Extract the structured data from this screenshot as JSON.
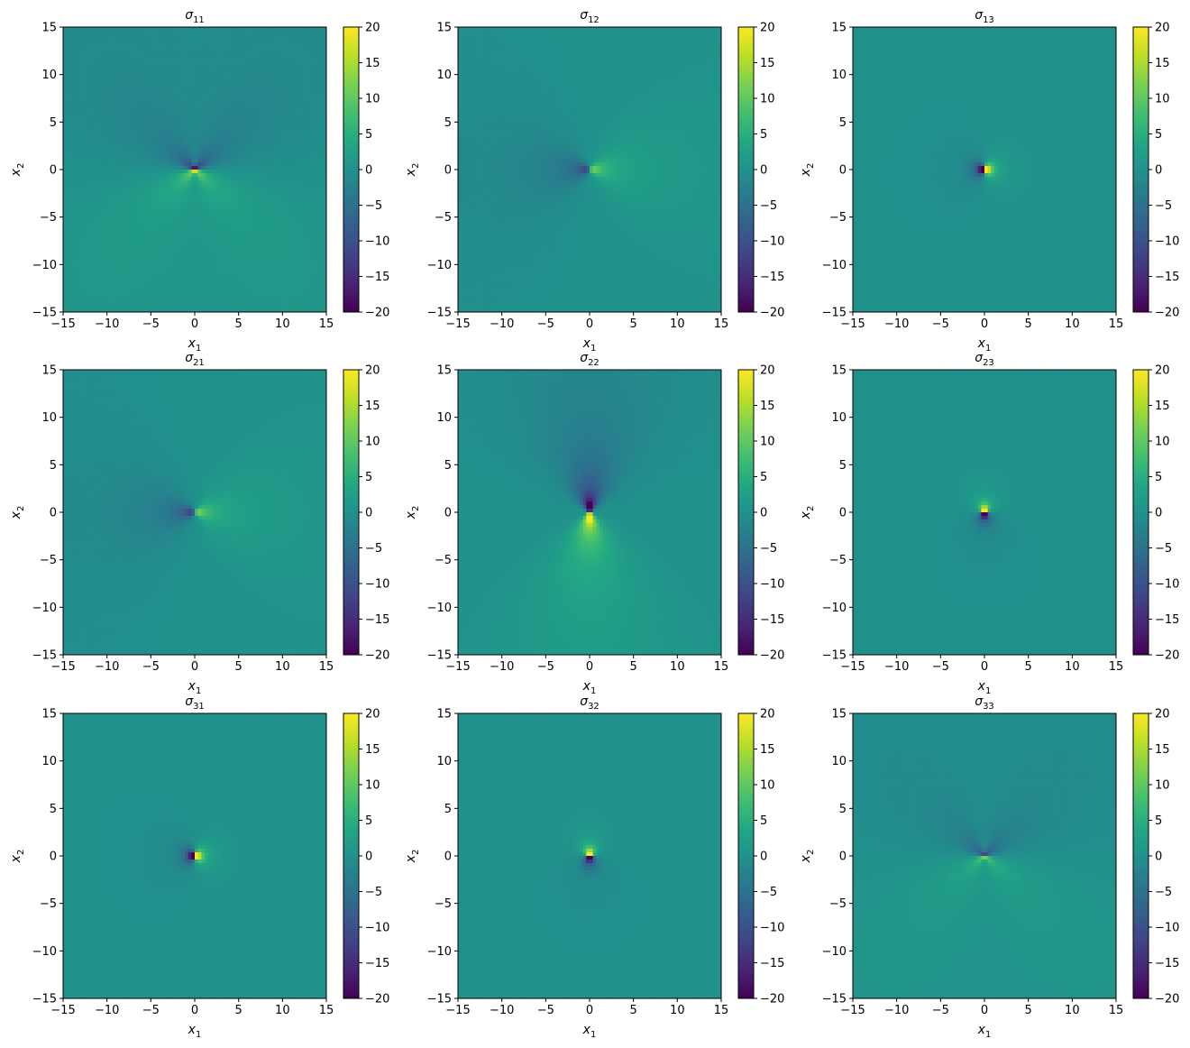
{
  "chart_data": [
    {
      "type": "heatmap",
      "title": "σ11",
      "title_sym": "σ",
      "title_sub": "11",
      "field": "s11",
      "xlabel_sym": "x",
      "xlabel_sub": "1",
      "ylabel_sym": "x",
      "ylabel_sub": "2",
      "xlim": [
        -15,
        15
      ],
      "ylim": [
        -15,
        15
      ],
      "clim": [
        -20,
        20
      ],
      "colormap": "viridis",
      "xticks": [
        -15,
        -10,
        -5,
        0,
        5,
        10,
        15
      ],
      "yticks": [
        -15,
        -10,
        -5,
        0,
        5,
        10,
        15
      ],
      "cticks": [
        -20,
        -15,
        -10,
        -5,
        0,
        5,
        10,
        15,
        20
      ]
    },
    {
      "type": "heatmap",
      "title": "σ12",
      "title_sym": "σ",
      "title_sub": "12",
      "field": "s12",
      "xlabel_sym": "x",
      "xlabel_sub": "1",
      "ylabel_sym": "x",
      "ylabel_sub": "2",
      "xlim": [
        -15,
        15
      ],
      "ylim": [
        -15,
        15
      ],
      "clim": [
        -20,
        20
      ],
      "colormap": "viridis",
      "xticks": [
        -15,
        -10,
        -5,
        0,
        5,
        10,
        15
      ],
      "yticks": [
        -15,
        -10,
        -5,
        0,
        5,
        10,
        15
      ],
      "cticks": [
        -20,
        -15,
        -10,
        -5,
        0,
        5,
        10,
        15,
        20
      ]
    },
    {
      "type": "heatmap",
      "title": "σ13",
      "title_sym": "σ",
      "title_sub": "13",
      "field": "s13",
      "xlabel_sym": "x",
      "xlabel_sub": "1",
      "ylabel_sym": "x",
      "ylabel_sub": "2",
      "xlim": [
        -15,
        15
      ],
      "ylim": [
        -15,
        15
      ],
      "clim": [
        -20,
        20
      ],
      "colormap": "viridis",
      "xticks": [
        -15,
        -10,
        -5,
        0,
        5,
        10,
        15
      ],
      "yticks": [
        -15,
        -10,
        -5,
        0,
        5,
        10,
        15
      ],
      "cticks": [
        -20,
        -15,
        -10,
        -5,
        0,
        5,
        10,
        15,
        20
      ]
    },
    {
      "type": "heatmap",
      "title": "σ21",
      "title_sym": "σ",
      "title_sub": "21",
      "field": "s21",
      "xlabel_sym": "x",
      "xlabel_sub": "1",
      "ylabel_sym": "x",
      "ylabel_sub": "2",
      "xlim": [
        -15,
        15
      ],
      "ylim": [
        -15,
        15
      ],
      "clim": [
        -20,
        20
      ],
      "colormap": "viridis",
      "xticks": [
        -15,
        -10,
        -5,
        0,
        5,
        10,
        15
      ],
      "yticks": [
        -15,
        -10,
        -5,
        0,
        5,
        10,
        15
      ],
      "cticks": [
        -20,
        -15,
        -10,
        -5,
        0,
        5,
        10,
        15,
        20
      ]
    },
    {
      "type": "heatmap",
      "title": "σ22",
      "title_sym": "σ",
      "title_sub": "22",
      "field": "s22",
      "xlabel_sym": "x",
      "xlabel_sub": "1",
      "ylabel_sym": "x",
      "ylabel_sub": "2",
      "xlim": [
        -15,
        15
      ],
      "ylim": [
        -15,
        15
      ],
      "clim": [
        -20,
        20
      ],
      "colormap": "viridis",
      "xticks": [
        -15,
        -10,
        -5,
        0,
        5,
        10,
        15
      ],
      "yticks": [
        -15,
        -10,
        -5,
        0,
        5,
        10,
        15
      ],
      "cticks": [
        -20,
        -15,
        -10,
        -5,
        0,
        5,
        10,
        15,
        20
      ]
    },
    {
      "type": "heatmap",
      "title": "σ23",
      "title_sym": "σ",
      "title_sub": "23",
      "field": "s23",
      "xlabel_sym": "x",
      "xlabel_sub": "1",
      "ylabel_sym": "x",
      "ylabel_sub": "2",
      "xlim": [
        -15,
        15
      ],
      "ylim": [
        -15,
        15
      ],
      "clim": [
        -20,
        20
      ],
      "colormap": "viridis",
      "xticks": [
        -15,
        -10,
        -5,
        0,
        5,
        10,
        15
      ],
      "yticks": [
        -15,
        -10,
        -5,
        0,
        5,
        10,
        15
      ],
      "cticks": [
        -20,
        -15,
        -10,
        -5,
        0,
        5,
        10,
        15,
        20
      ]
    },
    {
      "type": "heatmap",
      "title": "σ31",
      "title_sym": "σ",
      "title_sub": "31",
      "field": "s31",
      "xlabel_sym": "x",
      "xlabel_sub": "1",
      "ylabel_sym": "x",
      "ylabel_sub": "2",
      "xlim": [
        -15,
        15
      ],
      "ylim": [
        -15,
        15
      ],
      "clim": [
        -20,
        20
      ],
      "colormap": "viridis",
      "xticks": [
        -15,
        -10,
        -5,
        0,
        5,
        10,
        15
      ],
      "yticks": [
        -15,
        -10,
        -5,
        0,
        5,
        10,
        15
      ],
      "cticks": [
        -20,
        -15,
        -10,
        -5,
        0,
        5,
        10,
        15,
        20
      ]
    },
    {
      "type": "heatmap",
      "title": "σ32",
      "title_sym": "σ",
      "title_sub": "32",
      "field": "s32",
      "xlabel_sym": "x",
      "xlabel_sub": "1",
      "ylabel_sym": "x",
      "ylabel_sub": "2",
      "xlim": [
        -15,
        15
      ],
      "ylim": [
        -15,
        15
      ],
      "clim": [
        -20,
        20
      ],
      "colormap": "viridis",
      "xticks": [
        -15,
        -10,
        -5,
        0,
        5,
        10,
        15
      ],
      "yticks": [
        -15,
        -10,
        -5,
        0,
        5,
        10,
        15
      ],
      "cticks": [
        -20,
        -15,
        -10,
        -5,
        0,
        5,
        10,
        15,
        20
      ]
    },
    {
      "type": "heatmap",
      "title": "σ33",
      "title_sym": "σ",
      "title_sub": "33",
      "field": "s33",
      "xlabel_sym": "x",
      "xlabel_sub": "1",
      "ylabel_sym": "x",
      "ylabel_sub": "2",
      "xlim": [
        -15,
        15
      ],
      "ylim": [
        -15,
        15
      ],
      "clim": [
        -20,
        20
      ],
      "colormap": "viridis",
      "xticks": [
        -15,
        -10,
        -5,
        0,
        5,
        10,
        15
      ],
      "yticks": [
        -15,
        -10,
        -5,
        0,
        5,
        10,
        15
      ],
      "cticks": [
        -20,
        -15,
        -10,
        -5,
        0,
        5,
        10,
        15,
        20
      ]
    }
  ]
}
